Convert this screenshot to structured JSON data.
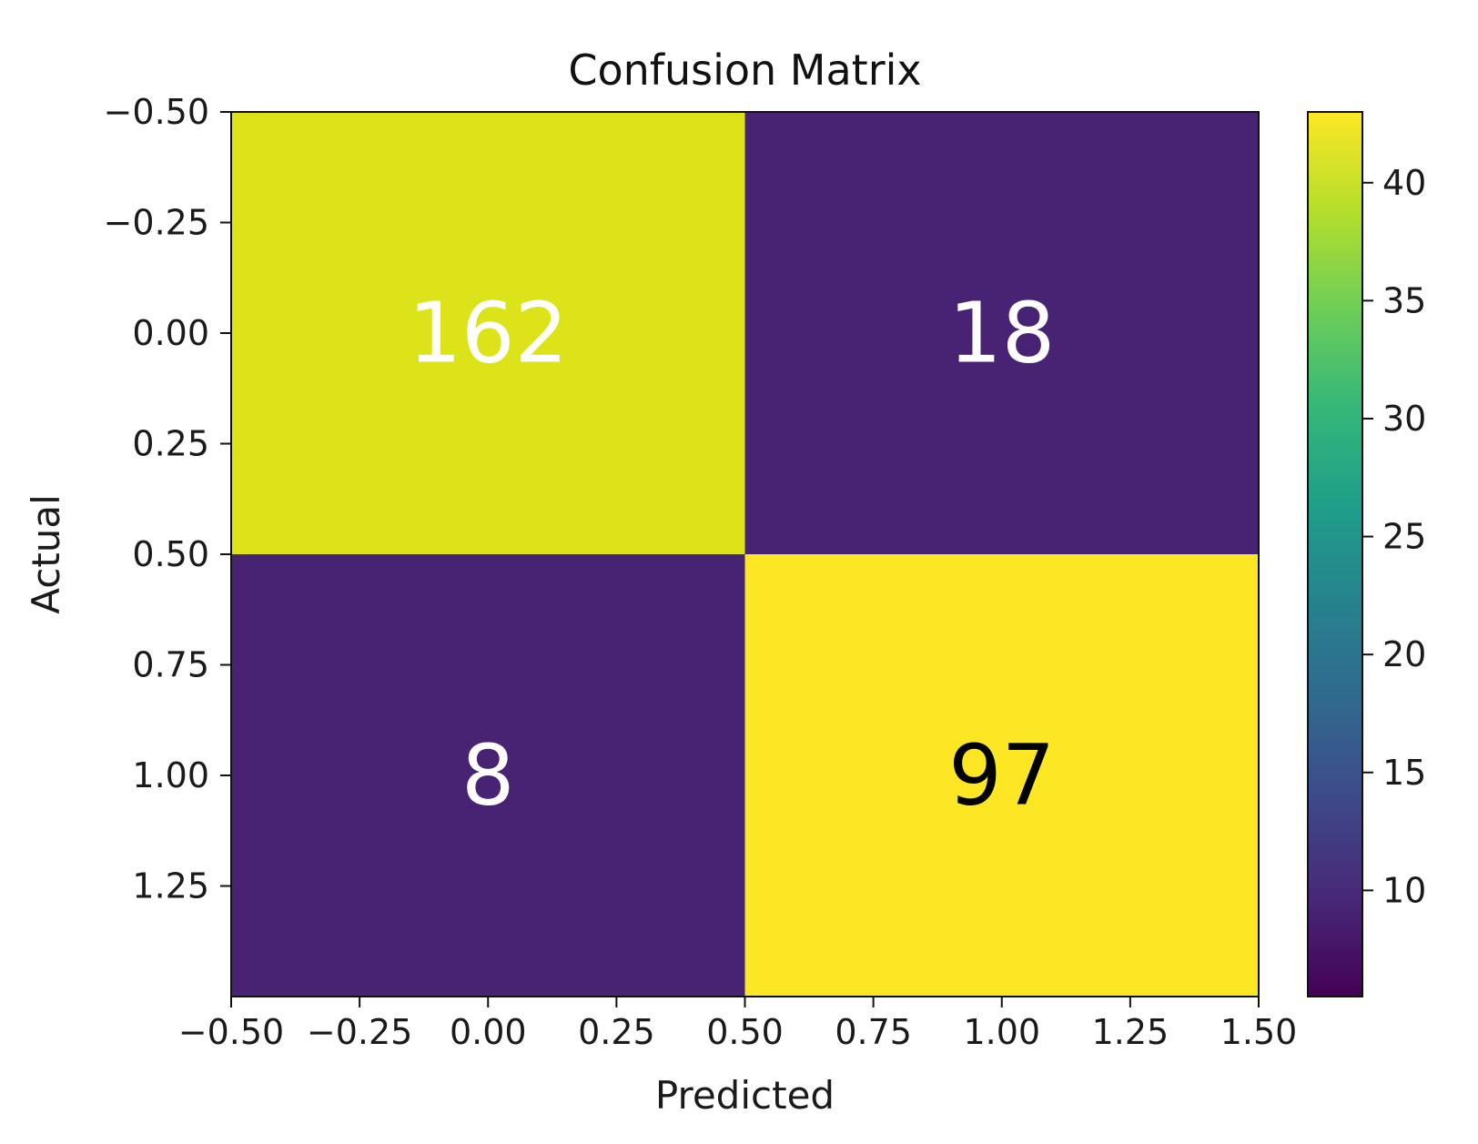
{
  "chart_data": {
    "type": "heatmap",
    "title": "Confusion Matrix",
    "xlabel": "Predicted",
    "ylabel": "Actual",
    "matrix": [
      [
        162,
        18
      ],
      [
        8,
        97
      ]
    ],
    "xlim": [
      -0.5,
      1.5
    ],
    "ylim": [
      1.5,
      -0.5
    ],
    "x_ticks": [
      -0.5,
      -0.25,
      0.0,
      0.25,
      0.5,
      0.75,
      1.0,
      1.25,
      1.5
    ],
    "x_tick_labels": [
      "−0.50",
      "−0.25",
      "0.00",
      "0.25",
      "0.50",
      "0.75",
      "1.00",
      "1.25",
      "1.50"
    ],
    "y_ticks": [
      -0.5,
      -0.25,
      0.0,
      0.25,
      0.5,
      0.75,
      1.0,
      1.25
    ],
    "y_tick_labels": [
      "−0.50",
      "−0.25",
      "0.00",
      "0.25",
      "0.50",
      "0.75",
      "1.00",
      "1.25"
    ],
    "cell_colors": [
      [
        "#dce319",
        "#482374"
      ],
      [
        "#482374",
        "#fde725"
      ]
    ],
    "cell_text_colors": [
      [
        "#ffffff",
        "#ffffff"
      ],
      [
        "#ffffff",
        "#000000"
      ]
    ],
    "colorbar": {
      "range": [
        5.5,
        43
      ],
      "ticks": [
        10,
        15,
        20,
        25,
        30,
        35,
        40
      ],
      "tick_labels": [
        "10",
        "15",
        "20",
        "25",
        "30",
        "35",
        "40"
      ],
      "colormap": "viridis",
      "stops": [
        "#440154",
        "#482878",
        "#3e4989",
        "#31688e",
        "#26828e",
        "#1f9e89",
        "#35b779",
        "#6ece58",
        "#b5de2b",
        "#fde725"
      ]
    },
    "grid": false,
    "legend": "none"
  }
}
